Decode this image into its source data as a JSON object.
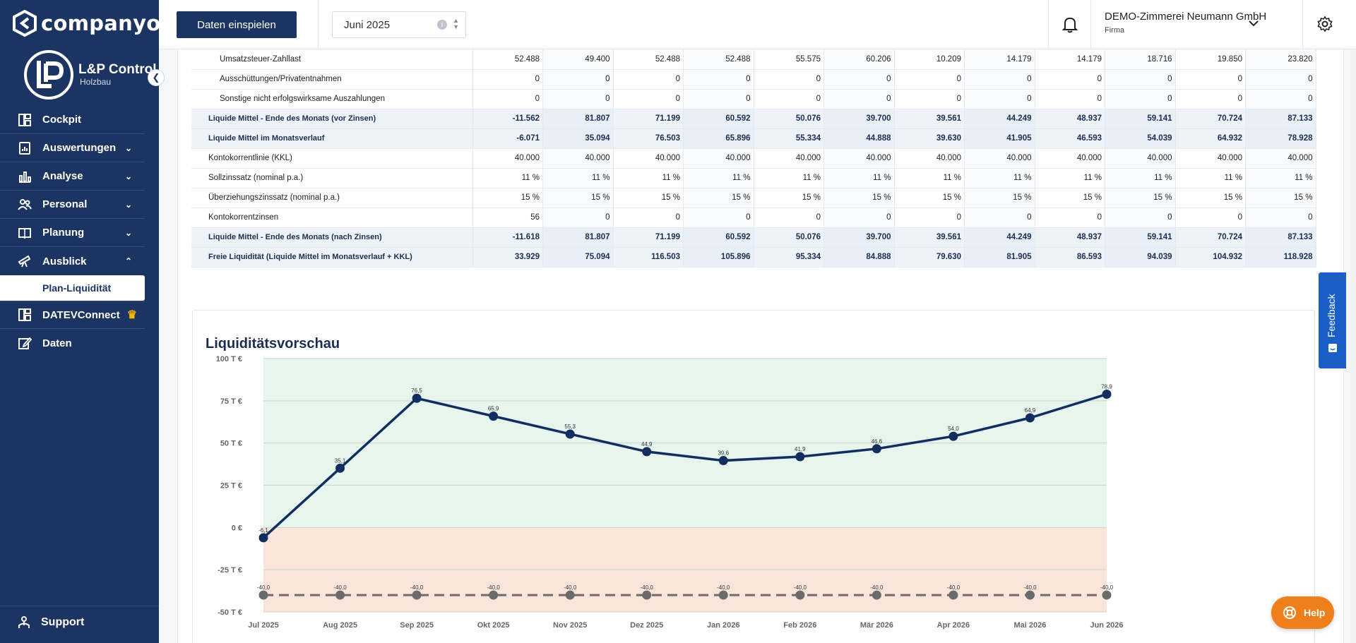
{
  "brand": {
    "name": "companyon"
  },
  "client": {
    "name": "L&P Control",
    "sub": "Holzbau",
    "logo_letters": "LP"
  },
  "sidebar": {
    "items": [
      {
        "label": "Cockpit",
        "icon": "dashboard-icon",
        "expandable": false
      },
      {
        "label": "Auswertungen",
        "icon": "report-icon",
        "expandable": true
      },
      {
        "label": "Analyse",
        "icon": "bar-chart-icon",
        "expandable": true
      },
      {
        "label": "Personal",
        "icon": "people-icon",
        "expandable": true
      },
      {
        "label": "Planung",
        "icon": "book-icon",
        "expandable": true
      },
      {
        "label": "Ausblick",
        "icon": "telescope-icon",
        "expandable": true,
        "expanded": true
      },
      {
        "label": "DATEVConnect",
        "icon": "dashboard-icon",
        "expandable": false
      },
      {
        "label": "Daten",
        "icon": "edit-icon",
        "expandable": false
      }
    ],
    "subitem_active": "Plan-Liquidität",
    "support": "Support"
  },
  "header": {
    "import_button": "Daten einspielen",
    "month": "Juni 2025",
    "company_name": "DEMO-Zimmerei Neumann GmbH",
    "company_type": "Firma"
  },
  "table": {
    "rows": [
      {
        "label": "Umsatzsteuer-Zahllast",
        "style": "indent",
        "values": [
          "52.488",
          "49.400",
          "52.488",
          "52.488",
          "55.575",
          "60.206",
          "10.209",
          "14.179",
          "14.179",
          "18.716",
          "19.850",
          "23.820"
        ]
      },
      {
        "label": "Ausschüttungen/Privatentnahmen",
        "style": "indent",
        "values": [
          "0",
          "0",
          "0",
          "0",
          "0",
          "0",
          "0",
          "0",
          "0",
          "0",
          "0",
          "0"
        ]
      },
      {
        "label": "Sonstige nicht erfolgswirksame Auszahlungen",
        "style": "indent",
        "values": [
          "0",
          "0",
          "0",
          "0",
          "0",
          "0",
          "0",
          "0",
          "0",
          "0",
          "0",
          "0"
        ]
      },
      {
        "label": "Liquide Mittel - Ende des Monats (vor Zinsen)",
        "style": "bold",
        "values": [
          "-11.562",
          "81.807",
          "71.199",
          "60.592",
          "50.076",
          "39.700",
          "39.561",
          "44.249",
          "48.937",
          "59.141",
          "70.724",
          "87.133"
        ]
      },
      {
        "label": "Liquide Mittel im Monatsverlauf",
        "style": "bold",
        "values": [
          "-6.071",
          "35.094",
          "76.503",
          "65.896",
          "55.334",
          "44.888",
          "39.630",
          "41.905",
          "46.593",
          "54.039",
          "64.932",
          "78.928"
        ]
      },
      {
        "label": "Kontokorrentlinie (KKL)",
        "style": "plain",
        "values": [
          "40.000",
          "40.000",
          "40.000",
          "40.000",
          "40.000",
          "40.000",
          "40.000",
          "40.000",
          "40.000",
          "40.000",
          "40.000",
          "40.000"
        ]
      },
      {
        "label": "Sollzinssatz (nominal p.a.)",
        "style": "plain",
        "values": [
          "11 %",
          "11 %",
          "11 %",
          "11 %",
          "11 %",
          "11 %",
          "11 %",
          "11 %",
          "11 %",
          "11 %",
          "11 %",
          "11 %"
        ]
      },
      {
        "label": "Überziehungszinssatz (nominal p.a.)",
        "style": "plain",
        "values": [
          "15 %",
          "15 %",
          "15 %",
          "15 %",
          "15 %",
          "15 %",
          "15 %",
          "15 %",
          "15 %",
          "15 %",
          "15 %",
          "15 %"
        ]
      },
      {
        "label": "Kontokorrentzinsen",
        "style": "plain",
        "values": [
          "56",
          "0",
          "0",
          "0",
          "0",
          "0",
          "0",
          "0",
          "0",
          "0",
          "0",
          "0"
        ]
      },
      {
        "label": "Liquide Mittel - Ende des Monats (nach Zinsen)",
        "style": "bold",
        "values": [
          "-11.618",
          "81.807",
          "71.199",
          "60.592",
          "50.076",
          "39.700",
          "39.561",
          "44.249",
          "48.937",
          "59.141",
          "70.724",
          "87.133"
        ]
      },
      {
        "label": "Freie Liquidität (Liquide Mittel im Monatsverlauf + KKL)",
        "style": "bold",
        "values": [
          "33.929",
          "75.094",
          "116.503",
          "105.896",
          "95.334",
          "84.888",
          "79.630",
          "81.905",
          "86.593",
          "94.039",
          "104.932",
          "118.928"
        ]
      }
    ]
  },
  "chart_data": {
    "type": "line",
    "title": "Liquiditätsvorschau",
    "categories": [
      "Jul 2025",
      "Aug 2025",
      "Sep 2025",
      "Okt 2025",
      "Nov 2025",
      "Dez 2025",
      "Jan 2026",
      "Feb 2026",
      "Mär 2026",
      "Apr 2026",
      "Mai 2026",
      "Jun 2026"
    ],
    "series": [
      {
        "values": [
          -6.1,
          35.1,
          76.5,
          65.9,
          55.3,
          44.9,
          39.6,
          41.9,
          46.6,
          54.0,
          64.9,
          78.9
        ],
        "labels": [
          "-6,1",
          "35,1",
          "76,5",
          "65,9",
          "55,3",
          "44,9",
          "39,6",
          "41,9",
          "46,6",
          "54,0",
          "64,9",
          "78,9"
        ],
        "color": "#112e5e",
        "style": "solid"
      },
      {
        "values": [
          -40,
          -40,
          -40,
          -40,
          -40,
          -40,
          -40,
          -40,
          -40,
          -40,
          -40,
          -40
        ],
        "labels": [
          "-40,0",
          "-40,0",
          "-40,0",
          "-40,0",
          "-40,0",
          "-40,0",
          "-40,0",
          "-40,0",
          "-40,0",
          "-40,0",
          "-40,0",
          "-40,0"
        ],
        "color": "#6b6b6b",
        "style": "dashed"
      }
    ],
    "yticks": [
      100,
      75,
      50,
      25,
      0,
      -25,
      -50
    ],
    "ytick_labels": [
      "100 T €",
      "75 T €",
      "50 T €",
      "25 T €",
      "0 €",
      "-25 T €",
      "-50 T €"
    ],
    "ylim": [
      -50,
      100
    ],
    "bands": {
      "positive": "#e6f5ee",
      "negative": "#fbe4da"
    },
    "grid": true
  },
  "feedback": {
    "label": "Feedback"
  },
  "help": {
    "label": "Help"
  }
}
